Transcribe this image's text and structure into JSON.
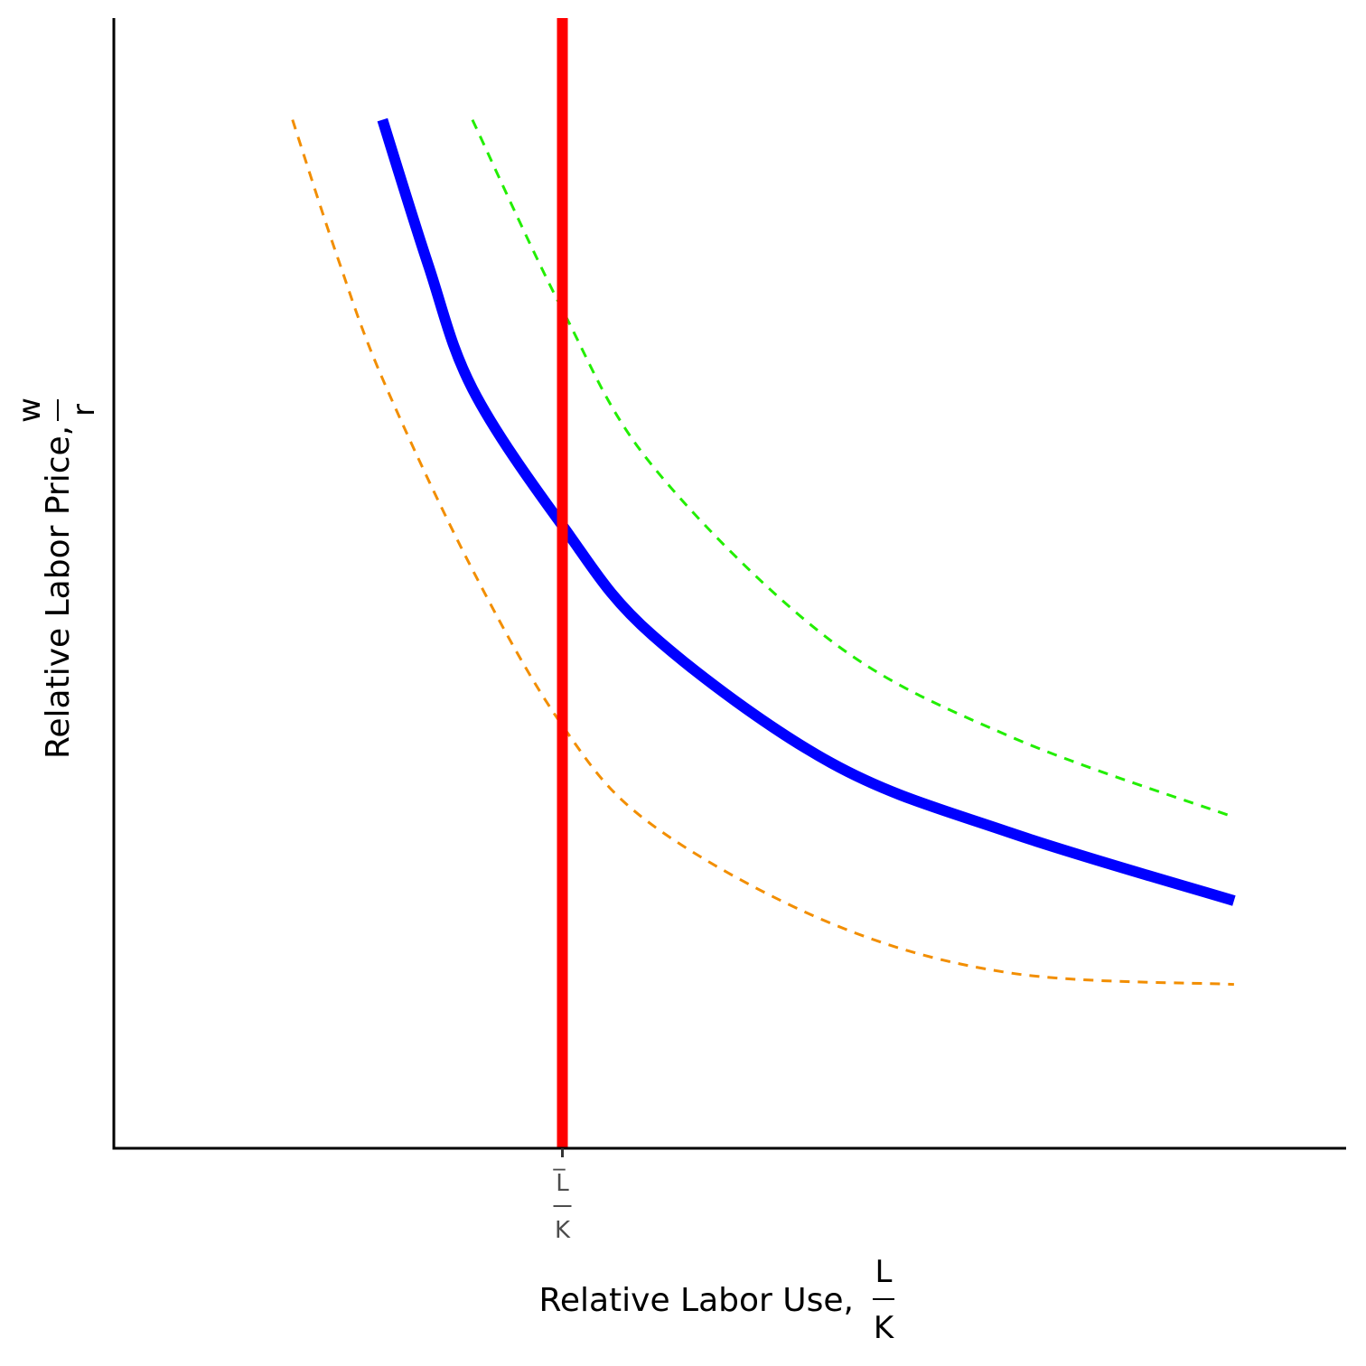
{
  "chart_data": {
    "type": "line",
    "title": "",
    "x_axis": {
      "label": "Relative Labor Use,",
      "label_fraction": {
        "numerator": "L",
        "denominator": "K"
      },
      "range": [
        0,
        100
      ],
      "ticks": [
        {
          "value": 36.4,
          "numerator": "L̅",
          "denominator": "K"
        }
      ]
    },
    "y_axis": {
      "label": "Relative Labor Price,",
      "label_fraction": {
        "numerator": "w",
        "denominator": "r"
      },
      "range": [
        0,
        100
      ]
    },
    "grid": false,
    "legend": "none",
    "series": [
      {
        "style": "dashed",
        "color": "#F28E00",
        "points": [
          [
            14.5,
            91
          ],
          [
            18.1,
            79
          ],
          [
            21.8,
            68.1
          ],
          [
            29.1,
            51.2
          ],
          [
            36.4,
            37.4
          ],
          [
            43.7,
            28.6
          ],
          [
            58.2,
            19.9
          ],
          [
            72.8,
            15.5
          ],
          [
            90.9,
            14.5
          ]
        ]
      },
      {
        "style": "solid",
        "color": "#0000FF",
        "points": [
          [
            21.8,
            91
          ],
          [
            25.5,
            78.2
          ],
          [
            29.1,
            67.2
          ],
          [
            36.4,
            55.1
          ],
          [
            43.7,
            45.4
          ],
          [
            58.2,
            34.1
          ],
          [
            72.8,
            27.9
          ],
          [
            90.9,
            21.9
          ]
        ]
      },
      {
        "style": "dashed",
        "color": "#22EE00",
        "points": [
          [
            29.1,
            91
          ],
          [
            36.4,
            74.2
          ],
          [
            43.7,
            60.4
          ],
          [
            58.2,
            44.9
          ],
          [
            72.8,
            36.4
          ],
          [
            90.9,
            29.3
          ]
        ]
      },
      {
        "style": "solid",
        "color": "#FF0000",
        "points": [
          [
            36.4,
            0
          ],
          [
            36.4,
            100
          ]
        ]
      }
    ]
  }
}
